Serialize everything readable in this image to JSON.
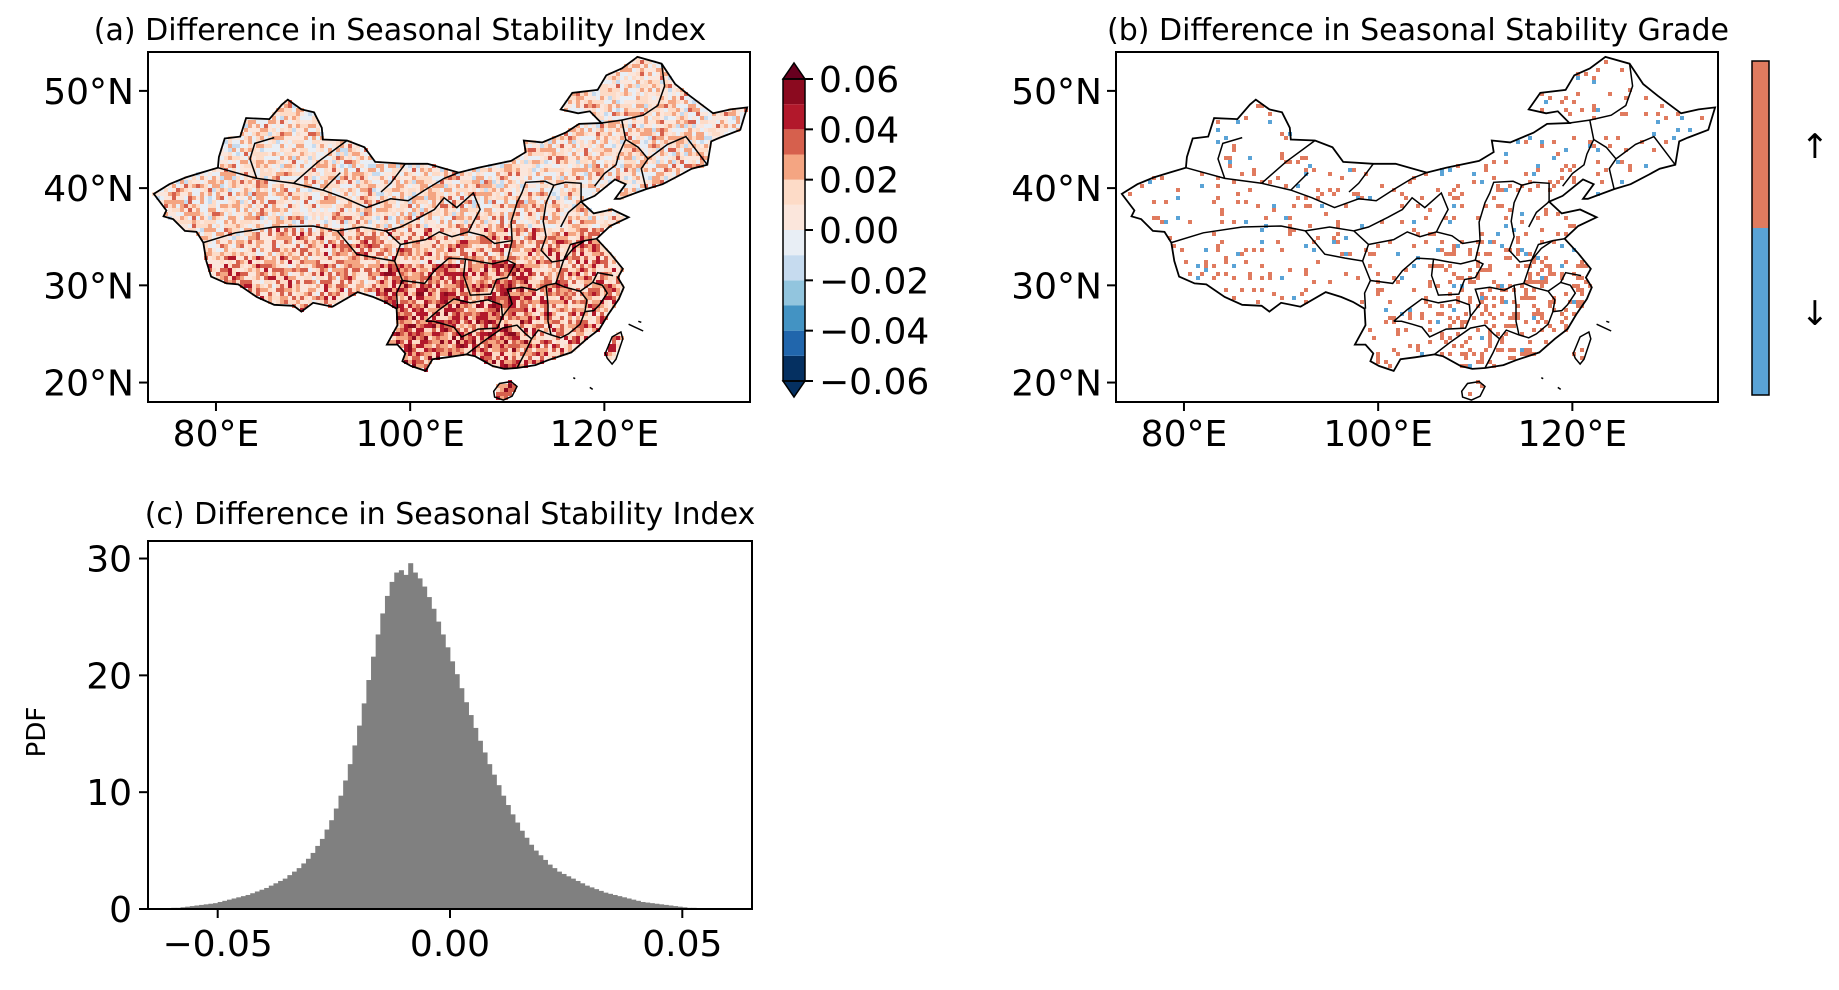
{
  "chart_data": [
    {
      "type": "heatmap",
      "panel": "a",
      "title": "(a) Difference in Seasonal Stability Index",
      "xticks": [
        "80°E",
        "100°E",
        "120°E"
      ],
      "xtick_values": [
        80,
        100,
        120
      ],
      "yticks": [
        "20°N",
        "30°N",
        "40°N",
        "50°N"
      ],
      "ytick_values": [
        20,
        30,
        40,
        50
      ],
      "xlim": [
        73,
        135
      ],
      "ylim": [
        18,
        54
      ],
      "colorbar": {
        "ticks": [
          "0.06",
          "0.04",
          "0.02",
          "0.00",
          "−0.02",
          "−0.04",
          "−0.06"
        ],
        "tick_values": [
          0.06,
          0.04,
          0.02,
          0.0,
          -0.02,
          -0.04,
          -0.06
        ],
        "levels": [
          -0.06,
          -0.05,
          -0.04,
          -0.03,
          -0.02,
          -0.01,
          0.0,
          0.01,
          0.02,
          0.03,
          0.04,
          0.05,
          0.06
        ],
        "colors": [
          "#053061",
          "#2166ac",
          "#4393c3",
          "#92c5de",
          "#c6dbef",
          "#e8eef5",
          "#fbe6dc",
          "#fddbc7",
          "#f4a582",
          "#d6604d",
          "#b2182b",
          "#8b0a1f"
        ],
        "extend": "both",
        "extend_colors": {
          "low": "#053061",
          "high": "#67001f"
        }
      }
    },
    {
      "type": "heatmap",
      "panel": "b",
      "title": "(b) Difference in Seasonal Stability Grade",
      "xticks": [
        "80°E",
        "100°E",
        "120°E"
      ],
      "xtick_values": [
        80,
        100,
        120
      ],
      "yticks": [
        "20°N",
        "30°N",
        "40°N",
        "50°N"
      ],
      "ytick_values": [
        20,
        30,
        40,
        50
      ],
      "xlim": [
        73,
        135
      ],
      "ylim": [
        18,
        54
      ],
      "colorbar": {
        "labels": [
          "↑",
          "↓"
        ],
        "colors": [
          "#e07b5f",
          "#5aa3d6"
        ]
      }
    },
    {
      "type": "bar",
      "panel": "c",
      "title": "(c) Difference in Seasonal Stability Index",
      "ylabel": "PDF",
      "xticks": [
        "−0.05",
        "0.00",
        "0.05"
      ],
      "xtick_values": [
        -0.05,
        0.0,
        0.05
      ],
      "yticks": [
        "0",
        "10",
        "20",
        "30"
      ],
      "ytick_values": [
        0,
        10,
        20,
        30
      ],
      "xlim": [
        -0.065,
        0.065
      ],
      "ylim": [
        0,
        31.5
      ],
      "bar_color": "#808080",
      "bins_start": -0.06,
      "bin_width": 0.001,
      "values": [
        0.1,
        0.1,
        0.15,
        0.2,
        0.25,
        0.3,
        0.35,
        0.4,
        0.45,
        0.5,
        0.6,
        0.7,
        0.8,
        0.9,
        1.0,
        1.1,
        1.2,
        1.35,
        1.5,
        1.65,
        1.8,
        2.0,
        2.2,
        2.4,
        2.6,
        2.9,
        3.2,
        3.5,
        3.9,
        4.3,
        4.8,
        5.4,
        6.0,
        6.8,
        7.6,
        8.6,
        9.7,
        11.0,
        12.4,
        14.0,
        15.7,
        17.6,
        19.6,
        21.6,
        23.5,
        25.3,
        26.8,
        28.0,
        28.8,
        29.0,
        28.6,
        29.6,
        28.8,
        28.3,
        27.6,
        26.7,
        25.7,
        24.6,
        23.5,
        22.4,
        21.2,
        20.1,
        18.9,
        17.7,
        16.6,
        15.5,
        14.4,
        13.4,
        12.4,
        11.5,
        10.6,
        9.7,
        8.9,
        8.1,
        7.4,
        6.7,
        6.1,
        5.5,
        5.0,
        4.6,
        4.2,
        3.8,
        3.5,
        3.2,
        3.0,
        2.8,
        2.6,
        2.4,
        2.2,
        2.0,
        1.85,
        1.7,
        1.55,
        1.4,
        1.3,
        1.2,
        1.1,
        1.0,
        0.9,
        0.8,
        0.7,
        0.6,
        0.55,
        0.5,
        0.45,
        0.4,
        0.35,
        0.3,
        0.25,
        0.2,
        0.15,
        0.1,
        0.1,
        0.08,
        0.06,
        0.05,
        0.04,
        0.03,
        0.02,
        0.02
      ]
    }
  ]
}
